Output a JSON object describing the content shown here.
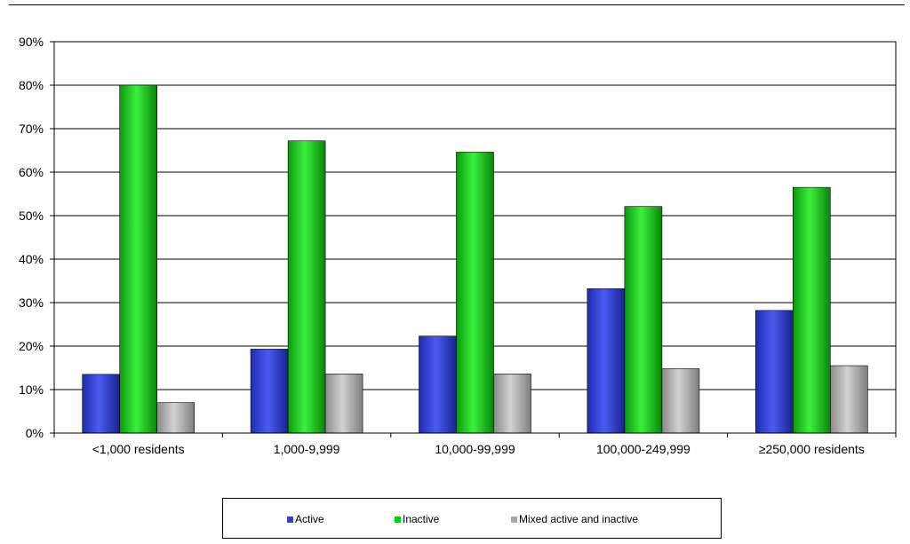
{
  "chart_data": {
    "type": "bar",
    "title": "",
    "xlabel": "",
    "ylabel": "",
    "ylim": [
      0,
      90
    ],
    "yticks": [
      0,
      10,
      20,
      30,
      40,
      50,
      60,
      70,
      80,
      90
    ],
    "ytick_labels": [
      "0%",
      "10%",
      "20%",
      "30%",
      "40%",
      "50%",
      "60%",
      "70%",
      "80%",
      "90%"
    ],
    "grid": true,
    "legend_position": "bottom",
    "categories": [
      "<1,000 residents",
      "1,000-9,999",
      "10,000-99,999",
      "100,000-249,999",
      "≥250,000 residents"
    ],
    "series": [
      {
        "name": "Active",
        "color": "#2f3fd0",
        "values": [
          13.5,
          19.3,
          22.3,
          33.2,
          28.2
        ]
      },
      {
        "name": "Inactive",
        "color": "#12c912",
        "values": [
          80.0,
          67.2,
          64.6,
          52.1,
          56.5
        ]
      },
      {
        "name": "Mixed active and inactive",
        "color": "#a8a8a8",
        "values": [
          7.0,
          13.6,
          13.6,
          14.8,
          15.5
        ]
      }
    ]
  }
}
